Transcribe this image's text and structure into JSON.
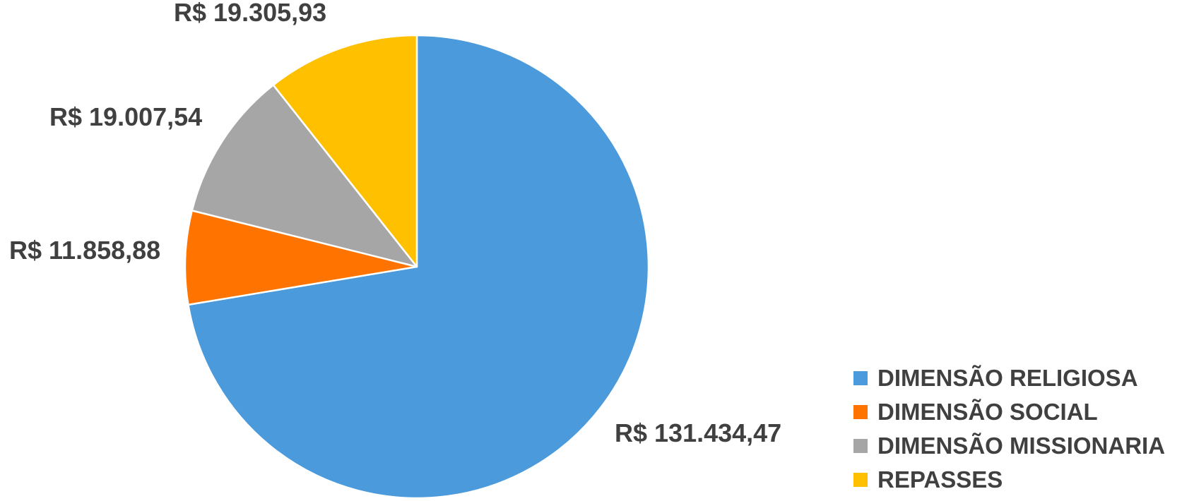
{
  "chart_data": {
    "type": "pie",
    "title": "",
    "categories": [
      "DIMENSÃO RELIGIOSA",
      "DIMENSÃO SOCIAL",
      "DIMENSÃO MISSIONARIA",
      "REPASSES"
    ],
    "values": [
      131434.47,
      11858.88,
      19007.54,
      19305.93
    ],
    "data_labels": [
      "R$ 131.434,47",
      "R$ 11.858,88",
      "R$ 19.007,54",
      "R$ 19.305,93"
    ],
    "colors": [
      "#4A9ADC",
      "#FF7300",
      "#A6A6A6",
      "#FFC000"
    ],
    "start_angle": "12 o'clock",
    "direction": "clockwise",
    "legend_position": "bottom-right"
  }
}
